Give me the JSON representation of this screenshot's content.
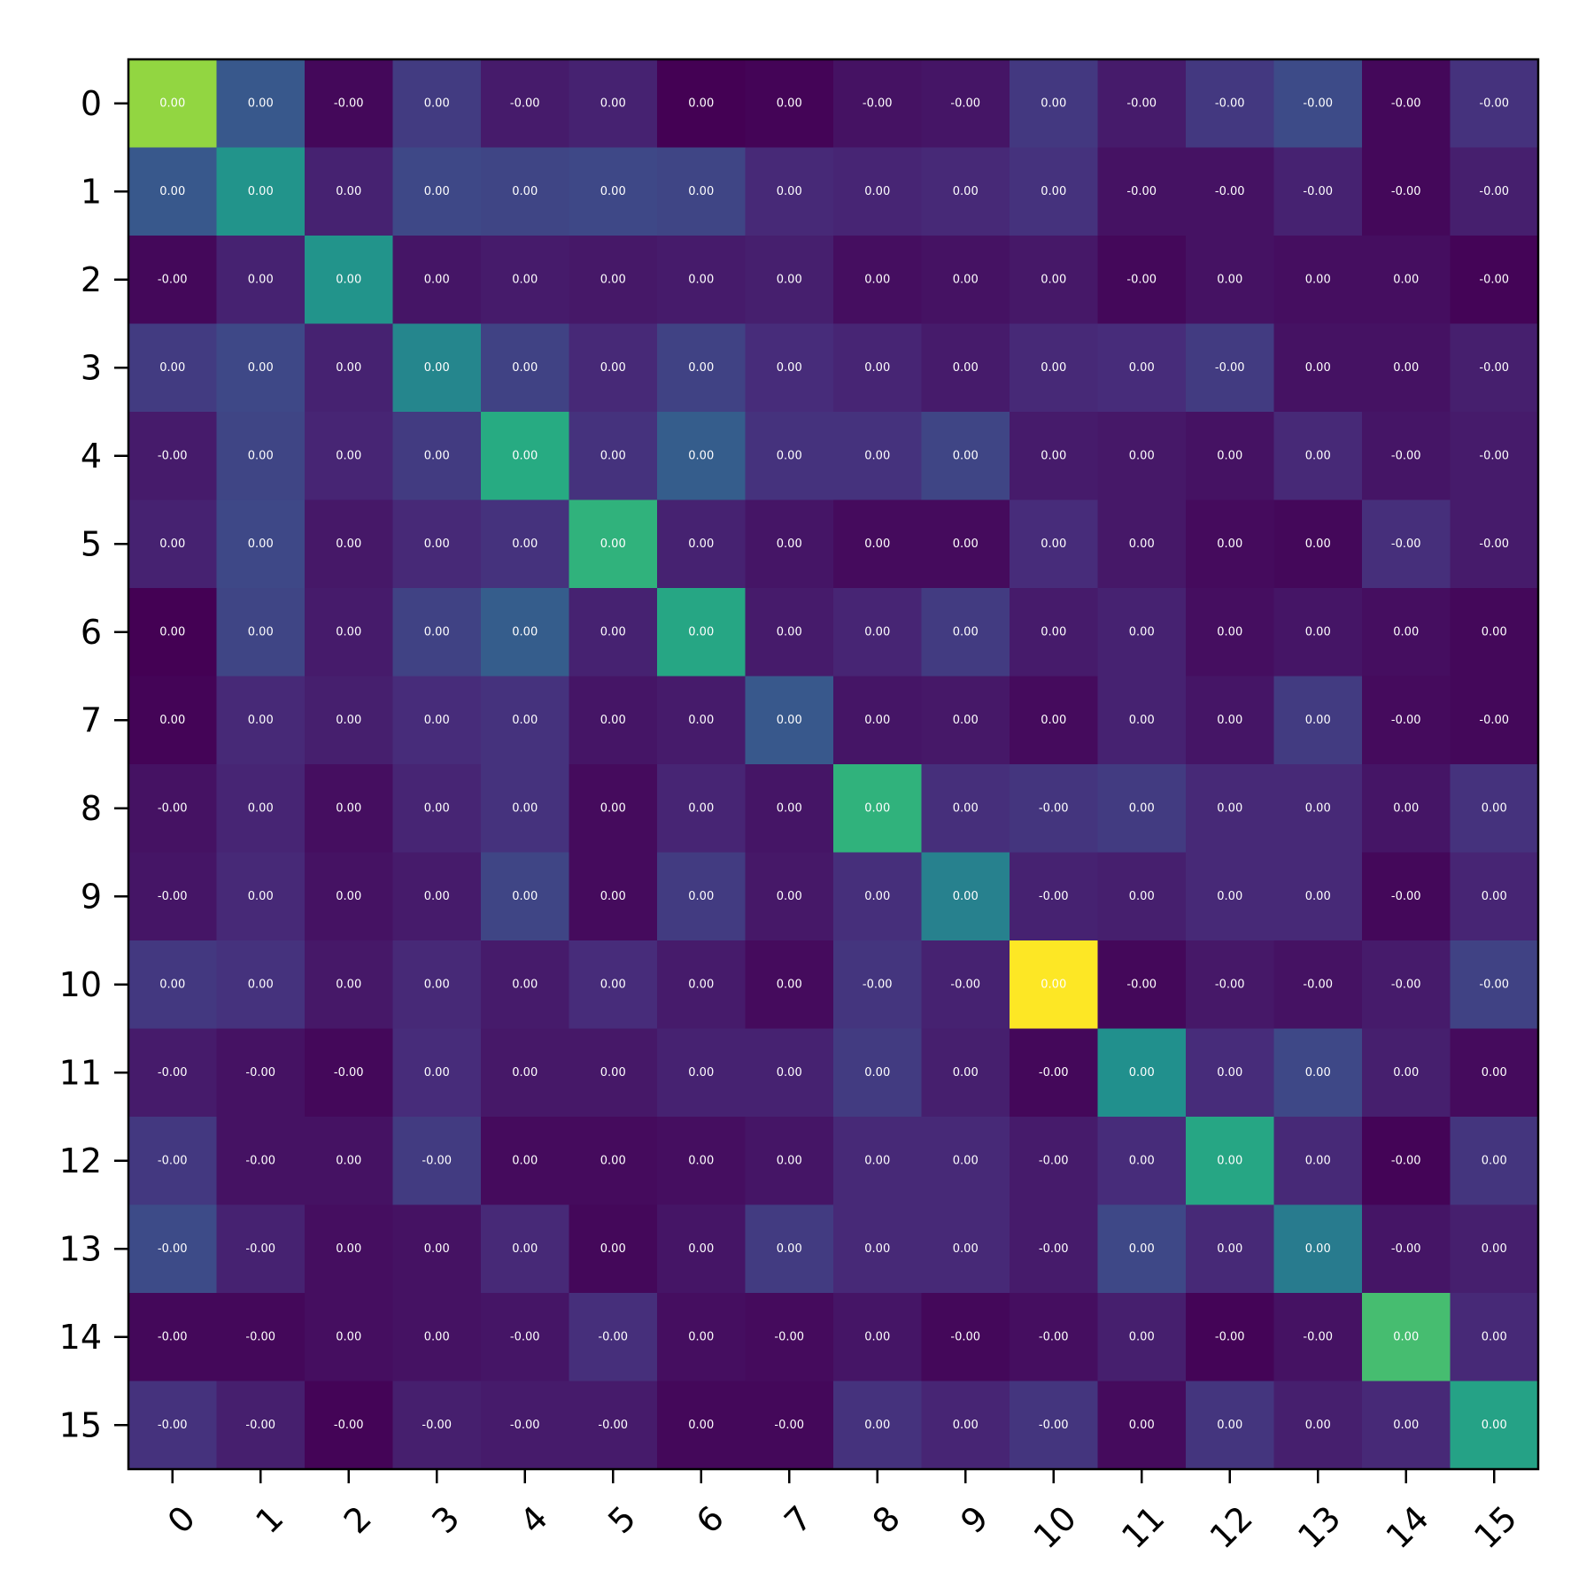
{
  "chart_data": {
    "type": "heatmap",
    "title": "",
    "xlabel": "",
    "ylabel": "",
    "colormap": "viridis",
    "x_categories": [
      "0",
      "1",
      "2",
      "3",
      "4",
      "5",
      "6",
      "7",
      "8",
      "9",
      "10",
      "11",
      "12",
      "13",
      "14",
      "15"
    ],
    "y_categories": [
      "0",
      "1",
      "2",
      "3",
      "4",
      "5",
      "6",
      "7",
      "8",
      "9",
      "10",
      "11",
      "12",
      "13",
      "14",
      "15"
    ],
    "grid": false,
    "x_tick_rotation_deg": -45,
    "intensity": [
      [
        0.84,
        0.28,
        0.02,
        0.18,
        0.08,
        0.1,
        0.0,
        0.01,
        0.05,
        0.06,
        0.17,
        0.08,
        0.17,
        0.23,
        0.02,
        0.15
      ],
      [
        0.28,
        0.52,
        0.1,
        0.22,
        0.21,
        0.22,
        0.21,
        0.12,
        0.11,
        0.12,
        0.15,
        0.05,
        0.05,
        0.1,
        0.02,
        0.09
      ],
      [
        0.02,
        0.1,
        0.52,
        0.06,
        0.08,
        0.07,
        0.08,
        0.09,
        0.04,
        0.05,
        0.07,
        0.02,
        0.05,
        0.04,
        0.04,
        0.01
      ],
      [
        0.18,
        0.22,
        0.1,
        0.46,
        0.2,
        0.12,
        0.2,
        0.13,
        0.11,
        0.08,
        0.12,
        0.13,
        0.18,
        0.05,
        0.05,
        0.09
      ],
      [
        0.08,
        0.21,
        0.11,
        0.18,
        0.62,
        0.15,
        0.3,
        0.15,
        0.15,
        0.21,
        0.08,
        0.07,
        0.05,
        0.12,
        0.06,
        0.08
      ],
      [
        0.1,
        0.22,
        0.07,
        0.12,
        0.15,
        0.65,
        0.1,
        0.06,
        0.03,
        0.03,
        0.13,
        0.07,
        0.03,
        0.02,
        0.14,
        0.08
      ],
      [
        0.0,
        0.21,
        0.08,
        0.2,
        0.3,
        0.1,
        0.6,
        0.08,
        0.11,
        0.18,
        0.08,
        0.1,
        0.04,
        0.06,
        0.04,
        0.02
      ],
      [
        0.01,
        0.12,
        0.09,
        0.13,
        0.15,
        0.06,
        0.08,
        0.28,
        0.06,
        0.07,
        0.03,
        0.1,
        0.06,
        0.18,
        0.03,
        0.02
      ],
      [
        0.05,
        0.11,
        0.04,
        0.11,
        0.15,
        0.03,
        0.11,
        0.06,
        0.65,
        0.14,
        0.16,
        0.18,
        0.12,
        0.12,
        0.06,
        0.15
      ],
      [
        0.06,
        0.12,
        0.05,
        0.08,
        0.21,
        0.03,
        0.18,
        0.07,
        0.14,
        0.44,
        0.1,
        0.09,
        0.12,
        0.12,
        0.02,
        0.11
      ],
      [
        0.17,
        0.15,
        0.07,
        0.12,
        0.08,
        0.13,
        0.08,
        0.03,
        0.16,
        0.1,
        1.0,
        0.02,
        0.07,
        0.05,
        0.08,
        0.2
      ],
      [
        0.08,
        0.05,
        0.02,
        0.13,
        0.07,
        0.07,
        0.1,
        0.1,
        0.18,
        0.09,
        0.02,
        0.5,
        0.13,
        0.22,
        0.09,
        0.03
      ],
      [
        0.17,
        0.05,
        0.05,
        0.18,
        0.03,
        0.03,
        0.04,
        0.06,
        0.12,
        0.12,
        0.08,
        0.13,
        0.6,
        0.12,
        0.01,
        0.16
      ],
      [
        0.23,
        0.1,
        0.04,
        0.05,
        0.12,
        0.02,
        0.06,
        0.18,
        0.12,
        0.12,
        0.08,
        0.22,
        0.12,
        0.42,
        0.06,
        0.09
      ],
      [
        0.02,
        0.02,
        0.04,
        0.05,
        0.06,
        0.14,
        0.04,
        0.03,
        0.06,
        0.02,
        0.04,
        0.09,
        0.01,
        0.05,
        0.7,
        0.12
      ],
      [
        0.15,
        0.09,
        0.01,
        0.09,
        0.08,
        0.08,
        0.02,
        0.02,
        0.15,
        0.11,
        0.16,
        0.03,
        0.16,
        0.09,
        0.12,
        0.58
      ]
    ],
    "labels": [
      [
        "0.00",
        "0.00",
        "-0.00",
        "0.00",
        "-0.00",
        "0.00",
        "0.00",
        "0.00",
        "-0.00",
        "-0.00",
        "0.00",
        "-0.00",
        "-0.00",
        "-0.00",
        "-0.00",
        "-0.00"
      ],
      [
        "0.00",
        "0.00",
        "0.00",
        "0.00",
        "0.00",
        "0.00",
        "0.00",
        "0.00",
        "0.00",
        "0.00",
        "0.00",
        "-0.00",
        "-0.00",
        "-0.00",
        "-0.00",
        "-0.00"
      ],
      [
        "-0.00",
        "0.00",
        "0.00",
        "0.00",
        "0.00",
        "0.00",
        "0.00",
        "0.00",
        "0.00",
        "0.00",
        "0.00",
        "-0.00",
        "0.00",
        "0.00",
        "0.00",
        "-0.00"
      ],
      [
        "0.00",
        "0.00",
        "0.00",
        "0.00",
        "0.00",
        "0.00",
        "0.00",
        "0.00",
        "0.00",
        "0.00",
        "0.00",
        "0.00",
        "-0.00",
        "0.00",
        "0.00",
        "-0.00"
      ],
      [
        "-0.00",
        "0.00",
        "0.00",
        "0.00",
        "0.00",
        "0.00",
        "0.00",
        "0.00",
        "0.00",
        "0.00",
        "0.00",
        "0.00",
        "0.00",
        "0.00",
        "-0.00",
        "-0.00"
      ],
      [
        "0.00",
        "0.00",
        "0.00",
        "0.00",
        "0.00",
        "0.00",
        "0.00",
        "0.00",
        "0.00",
        "0.00",
        "0.00",
        "0.00",
        "0.00",
        "0.00",
        "-0.00",
        "-0.00"
      ],
      [
        "0.00",
        "0.00",
        "0.00",
        "0.00",
        "0.00",
        "0.00",
        "0.00",
        "0.00",
        "0.00",
        "0.00",
        "0.00",
        "0.00",
        "0.00",
        "0.00",
        "0.00",
        "0.00"
      ],
      [
        "0.00",
        "0.00",
        "0.00",
        "0.00",
        "0.00",
        "0.00",
        "0.00",
        "0.00",
        "0.00",
        "0.00",
        "0.00",
        "0.00",
        "0.00",
        "0.00",
        "-0.00",
        "-0.00"
      ],
      [
        "-0.00",
        "0.00",
        "0.00",
        "0.00",
        "0.00",
        "0.00",
        "0.00",
        "0.00",
        "0.00",
        "0.00",
        "-0.00",
        "0.00",
        "0.00",
        "0.00",
        "0.00",
        "0.00"
      ],
      [
        "-0.00",
        "0.00",
        "0.00",
        "0.00",
        "0.00",
        "0.00",
        "0.00",
        "0.00",
        "0.00",
        "0.00",
        "-0.00",
        "0.00",
        "0.00",
        "0.00",
        "-0.00",
        "0.00"
      ],
      [
        "0.00",
        "0.00",
        "0.00",
        "0.00",
        "0.00",
        "0.00",
        "0.00",
        "0.00",
        "-0.00",
        "-0.00",
        "0.00",
        "-0.00",
        "-0.00",
        "-0.00",
        "-0.00",
        "-0.00"
      ],
      [
        "-0.00",
        "-0.00",
        "-0.00",
        "0.00",
        "0.00",
        "0.00",
        "0.00",
        "0.00",
        "0.00",
        "0.00",
        "-0.00",
        "0.00",
        "0.00",
        "0.00",
        "0.00",
        "0.00"
      ],
      [
        "-0.00",
        "-0.00",
        "0.00",
        "-0.00",
        "0.00",
        "0.00",
        "0.00",
        "0.00",
        "0.00",
        "0.00",
        "-0.00",
        "0.00",
        "0.00",
        "0.00",
        "-0.00",
        "0.00"
      ],
      [
        "-0.00",
        "-0.00",
        "0.00",
        "0.00",
        "0.00",
        "0.00",
        "0.00",
        "0.00",
        "0.00",
        "0.00",
        "-0.00",
        "0.00",
        "0.00",
        "0.00",
        "-0.00",
        "0.00"
      ],
      [
        "-0.00",
        "-0.00",
        "0.00",
        "0.00",
        "-0.00",
        "-0.00",
        "0.00",
        "-0.00",
        "0.00",
        "-0.00",
        "-0.00",
        "0.00",
        "-0.00",
        "-0.00",
        "0.00",
        "0.00"
      ],
      [
        "-0.00",
        "-0.00",
        "-0.00",
        "-0.00",
        "-0.00",
        "-0.00",
        "0.00",
        "-0.00",
        "0.00",
        "0.00",
        "-0.00",
        "0.00",
        "0.00",
        "0.00",
        "0.00",
        "0.00"
      ]
    ]
  }
}
